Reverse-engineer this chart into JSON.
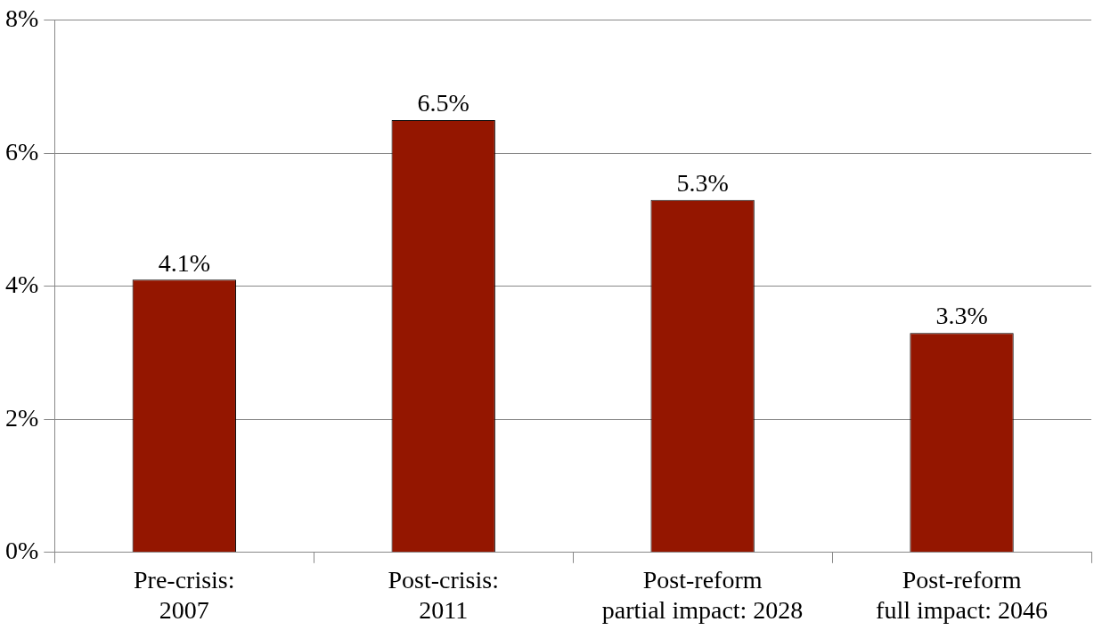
{
  "chart_data": {
    "type": "bar",
    "categories": [
      "Pre-crisis: 2007",
      "Post-crisis: 2011",
      "Post-reform partial impact: 2028",
      "Post-reform full impact: 2046"
    ],
    "values": [
      4.1,
      6.5,
      5.3,
      3.3
    ],
    "value_labels": [
      "4.1%",
      "6.5%",
      "5.3%",
      "3.3%"
    ],
    "color": "#941600",
    "ylim": [
      0,
      8
    ],
    "yticks": [
      {
        "value": 0,
        "label": "0%"
      },
      {
        "value": 2,
        "label": "2%"
      },
      {
        "value": 4,
        "label": "4%"
      },
      {
        "value": 6,
        "label": "6%"
      },
      {
        "value": 8,
        "label": "8%"
      }
    ],
    "grid": "y",
    "legend": false
  }
}
